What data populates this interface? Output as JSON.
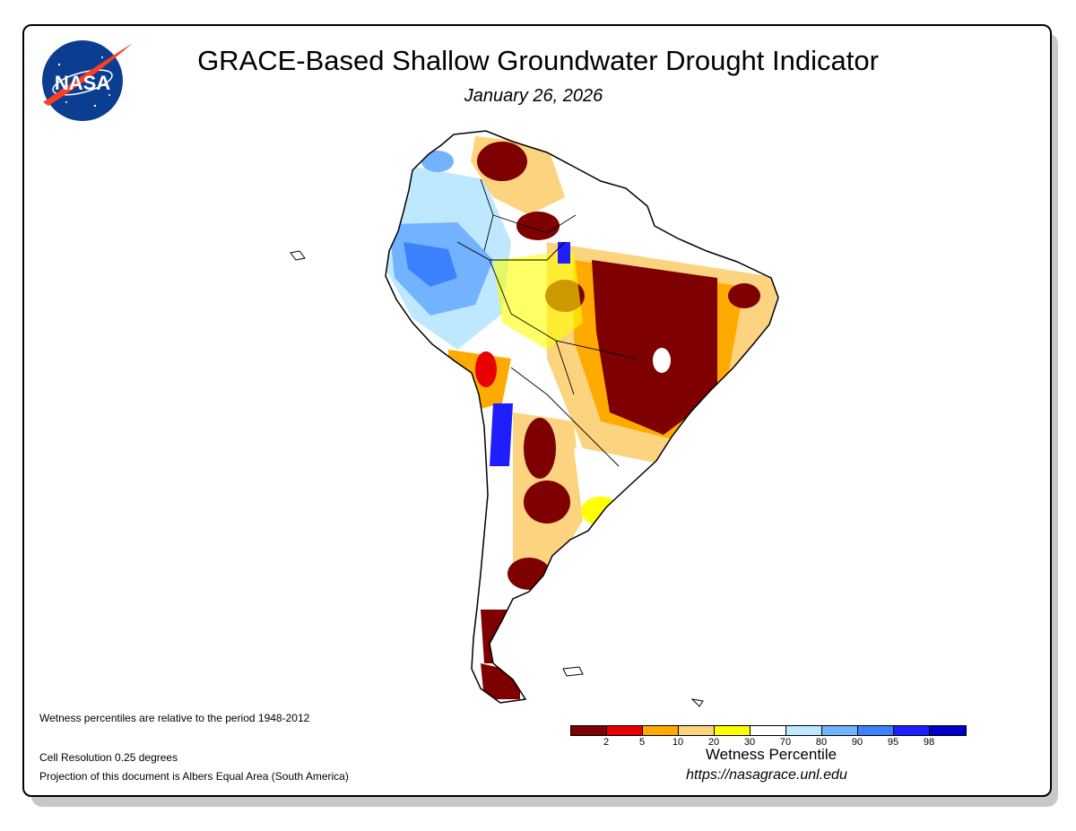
{
  "header": {
    "title": "GRACE-Based Shallow Groundwater Drought Indicator",
    "date": "January 26, 2026"
  },
  "logo": {
    "text": "NASA"
  },
  "notes": {
    "period": "Wetness percentiles are relative to the period 1948-2012",
    "resolution": "Cell Resolution 0.25 degrees",
    "projection": "Projection of this document is Albers Equal Area (South America)"
  },
  "legend": {
    "title": "Wetness Percentile",
    "colors": [
      "#7f0000",
      "#e60000",
      "#ffaa00",
      "#fcd37f",
      "#ffff00",
      "#ffffff",
      "#bee8ff",
      "#73b2ff",
      "#3c82ff",
      "#1e1eff",
      "#0000c8"
    ],
    "ticks": [
      "2",
      "5",
      "10",
      "20",
      "30",
      "70",
      "80",
      "90",
      "95",
      "98"
    ]
  },
  "footer": {
    "url": "https://nasagrace.unl.edu"
  }
}
